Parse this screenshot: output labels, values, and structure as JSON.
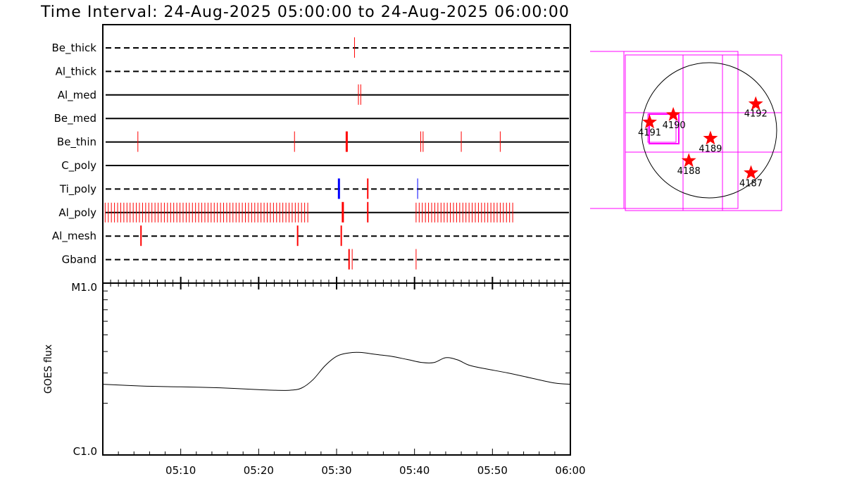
{
  "chart_data": [
    {
      "type": "timeline",
      "title": "Time Interval: 24-Aug-2025 05:00:00 to 24-Aug-2025 06:00:00",
      "x_unit": "minutes after 05:00",
      "xlim": [
        0,
        60
      ],
      "rows": [
        {
          "label": "Be_thick",
          "line": "dashed",
          "events": [
            {
              "t": 32.3,
              "color": "#ff0000",
              "w": 1
            }
          ]
        },
        {
          "label": "Al_thick",
          "line": "dashed",
          "events": []
        },
        {
          "label": "Al_med",
          "line": "solid",
          "events": [
            {
              "t": 32.8,
              "color": "#ff0000",
              "w": 1
            },
            {
              "t": 33.1,
              "color": "#ff0000",
              "w": 1
            }
          ]
        },
        {
          "label": "Be_med",
          "line": "solid",
          "events": []
        },
        {
          "label": "Be_thin",
          "line": "solid",
          "events": [
            {
              "t": 4.5,
              "color": "#ff0000",
              "w": 1
            },
            {
              "t": 24.6,
              "color": "#ff0000",
              "w": 1
            },
            {
              "t": 31.3,
              "color": "#ff0000",
              "w": 3
            },
            {
              "t": 40.8,
              "color": "#ff0000",
              "w": 1
            },
            {
              "t": 41.1,
              "color": "#ff0000",
              "w": 1
            },
            {
              "t": 46.0,
              "color": "#ff0000",
              "w": 1
            },
            {
              "t": 51.0,
              "color": "#ff0000",
              "w": 1
            }
          ]
        },
        {
          "label": "C_poly",
          "line": "solid",
          "events": []
        },
        {
          "label": "Ti_poly",
          "line": "dashed",
          "events": [
            {
              "t": 30.3,
              "color": "#0000ff",
              "w": 3
            },
            {
              "t": 34.0,
              "color": "#ff0000",
              "w": 2
            },
            {
              "t": 40.4,
              "color": "#0000ff",
              "w": 1
            }
          ]
        },
        {
          "label": "Al_poly",
          "line": "solid",
          "events": [],
          "dense_ranges": [
            {
              "from": 0.3,
              "to": 26.5,
              "step": 0.4,
              "color": "#ff0000"
            },
            {
              "from": 40.2,
              "to": 52.8,
              "step": 0.4,
              "color": "#ff0000"
            }
          ],
          "extra": [
            {
              "t": 30.8,
              "color": "#ff0000",
              "w": 3
            },
            {
              "t": 34.0,
              "color": "#ff0000",
              "w": 2
            }
          ]
        },
        {
          "label": "Al_mesh",
          "line": "dashed",
          "events": [
            {
              "t": 4.9,
              "color": "#ff0000",
              "w": 2
            },
            {
              "t": 25.0,
              "color": "#ff0000",
              "w": 2
            },
            {
              "t": 30.6,
              "color": "#ff0000",
              "w": 2
            }
          ]
        },
        {
          "label": "Gband",
          "line": "dashed",
          "events": [
            {
              "t": 31.6,
              "color": "#ff0000",
              "w": 2
            },
            {
              "t": 32.0,
              "color": "#ff0000",
              "w": 1
            },
            {
              "t": 40.2,
              "color": "#ff0000",
              "w": 1
            }
          ]
        }
      ]
    },
    {
      "type": "line",
      "ylabel": "GOES flux",
      "x_unit": "minutes after 05:00",
      "xlim": [
        0,
        60
      ],
      "ytick_labels": [
        "M1.0",
        "C1.0"
      ],
      "xtick_labels": [
        "05:10",
        "05:20",
        "05:30",
        "05:40",
        "05:50",
        "06:00"
      ],
      "xtick_values": [
        10,
        20,
        30,
        40,
        50,
        60
      ],
      "y_scale": "log",
      "ylim": [
        1e-06,
        1e-05
      ],
      "series": [
        {
          "x": [
            0,
            5,
            10,
            15,
            20,
            22,
            24,
            25.5,
            27,
            28.5,
            30,
            31.5,
            33,
            35,
            37,
            39,
            41,
            42.5,
            44,
            45.5,
            47,
            49,
            52,
            55,
            58,
            60
          ],
          "y": [
            2.58e-06,
            2.52e-06,
            2.49e-06,
            2.46e-06,
            2.4e-06,
            2.38e-06,
            2.38e-06,
            2.45e-06,
            2.75e-06,
            3.3e-06,
            3.75e-06,
            3.92e-06,
            3.95e-06,
            3.85e-06,
            3.75e-06,
            3.6e-06,
            3.45e-06,
            3.45e-06,
            3.68e-06,
            3.58e-06,
            3.33e-06,
            3.18e-06,
            3e-06,
            2.8e-06,
            2.62e-06,
            2.58e-06
          ]
        }
      ]
    },
    {
      "type": "map",
      "regions": [
        {
          "label": "4187",
          "x": 0.62,
          "y": -0.63
        },
        {
          "label": "4188",
          "x": -0.3,
          "y": -0.45
        },
        {
          "label": "4189",
          "x": 0.02,
          "y": -0.12
        },
        {
          "label": "4190",
          "x": -0.53,
          "y": 0.23
        },
        {
          "label": "4191",
          "x": -0.88,
          "y": 0.12
        },
        {
          "label": "4192",
          "x": 0.69,
          "y": 0.39
        }
      ],
      "colors": {
        "fov": "#ff00ff",
        "star": "#ff0000",
        "limb": "#000000"
      }
    }
  ]
}
